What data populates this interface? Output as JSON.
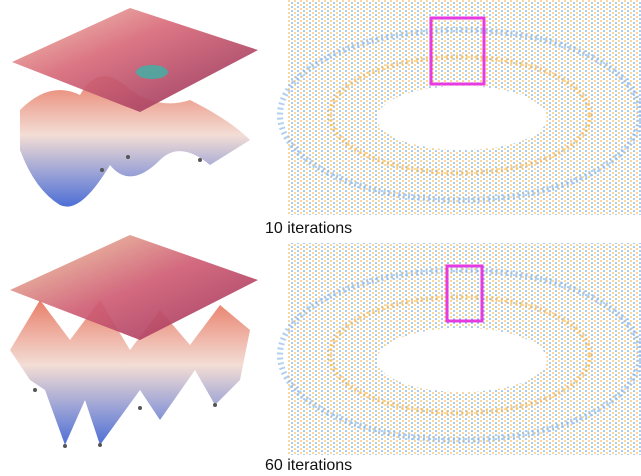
{
  "panels": [
    {
      "caption": "10 iterations"
    },
    {
      "caption": "60 iterations"
    }
  ]
}
